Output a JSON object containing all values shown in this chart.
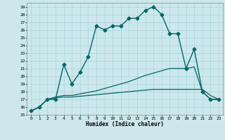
{
  "xlabel": "Humidex (Indice chaleur)",
  "bg_color": "#cce8ec",
  "line_color": "#006666",
  "grid_color": "#aad4d8",
  "xlim": [
    -0.5,
    23.5
  ],
  "ylim": [
    15,
    29.5
  ],
  "yticks": [
    15,
    16,
    17,
    18,
    19,
    20,
    21,
    22,
    23,
    24,
    25,
    26,
    27,
    28,
    29
  ],
  "xticks": [
    0,
    1,
    2,
    3,
    4,
    5,
    6,
    7,
    8,
    9,
    10,
    11,
    12,
    13,
    14,
    15,
    16,
    17,
    18,
    19,
    20,
    21,
    22,
    23
  ],
  "lines": [
    {
      "x": [
        0,
        1,
        2,
        3,
        4,
        5,
        6,
        7,
        8,
        9,
        10,
        11,
        12,
        13,
        14,
        15,
        16,
        17,
        18,
        19,
        20,
        21,
        22,
        23
      ],
      "y": [
        15.5,
        16.0,
        17.0,
        17.0,
        21.5,
        19.0,
        20.5,
        22.5,
        26.5,
        26.0,
        26.5,
        26.5,
        27.5,
        27.5,
        28.5,
        29.0,
        28.0,
        25.5,
        25.5,
        21.0,
        23.5,
        18.0,
        17.0,
        17.0
      ],
      "marker": "D",
      "markersize": 2.5,
      "linewidth": 1.0
    },
    {
      "x": [
        0,
        1,
        2,
        3,
        4,
        5,
        6,
        7,
        8,
        9,
        10,
        11,
        12,
        13,
        14,
        15,
        16,
        17,
        18,
        19,
        20,
        21,
        22,
        23
      ],
      "y": [
        15.5,
        16.0,
        17.0,
        17.2,
        17.3,
        17.3,
        17.4,
        17.5,
        17.6,
        17.7,
        17.8,
        17.9,
        18.0,
        18.1,
        18.2,
        18.3,
        18.3,
        18.3,
        18.3,
        18.3,
        18.3,
        18.3,
        17.5,
        17.0
      ],
      "marker": null,
      "markersize": 0,
      "linewidth": 0.9
    },
    {
      "x": [
        0,
        1,
        2,
        3,
        4,
        5,
        6,
        7,
        8,
        9,
        10,
        11,
        12,
        13,
        14,
        15,
        16,
        17,
        18,
        19,
        20,
        21,
        22,
        23
      ],
      "y": [
        15.5,
        16.0,
        17.0,
        17.3,
        17.5,
        17.5,
        17.7,
        17.9,
        18.1,
        18.4,
        18.7,
        19.0,
        19.3,
        19.7,
        20.1,
        20.4,
        20.7,
        21.0,
        21.0,
        21.0,
        21.2,
        18.0,
        17.0,
        17.0
      ],
      "marker": null,
      "markersize": 0,
      "linewidth": 0.9
    }
  ]
}
